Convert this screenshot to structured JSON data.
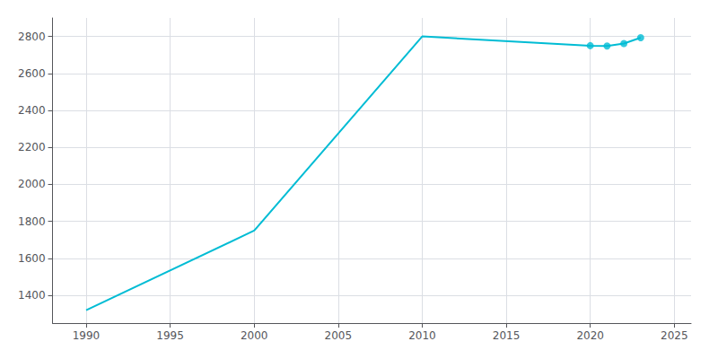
{
  "chart_data": {
    "type": "line",
    "x": [
      1990,
      2000,
      2010,
      2020,
      2021,
      2022,
      2023
    ],
    "series": [
      {
        "type": "line",
        "color": "#00BCD4",
        "marker": "none",
        "values": [
          1320,
          1750,
          2800,
          2750,
          2748,
          2762,
          2793
        ]
      },
      {
        "type": "scatter",
        "color": "#00BCD4",
        "marker": "circle",
        "values": [
          null,
          null,
          null,
          2750,
          2748,
          2762,
          2793
        ]
      }
    ],
    "xlim": [
      1988,
      2026
    ],
    "xticks": [
      1990,
      1995,
      2000,
      2005,
      2010,
      2015,
      2020,
      2025
    ],
    "ylim": [
      1250,
      2900
    ],
    "yticks": [
      1400,
      1600,
      1800,
      2000,
      2200,
      2400,
      2600,
      2800
    ],
    "grid": true
  }
}
